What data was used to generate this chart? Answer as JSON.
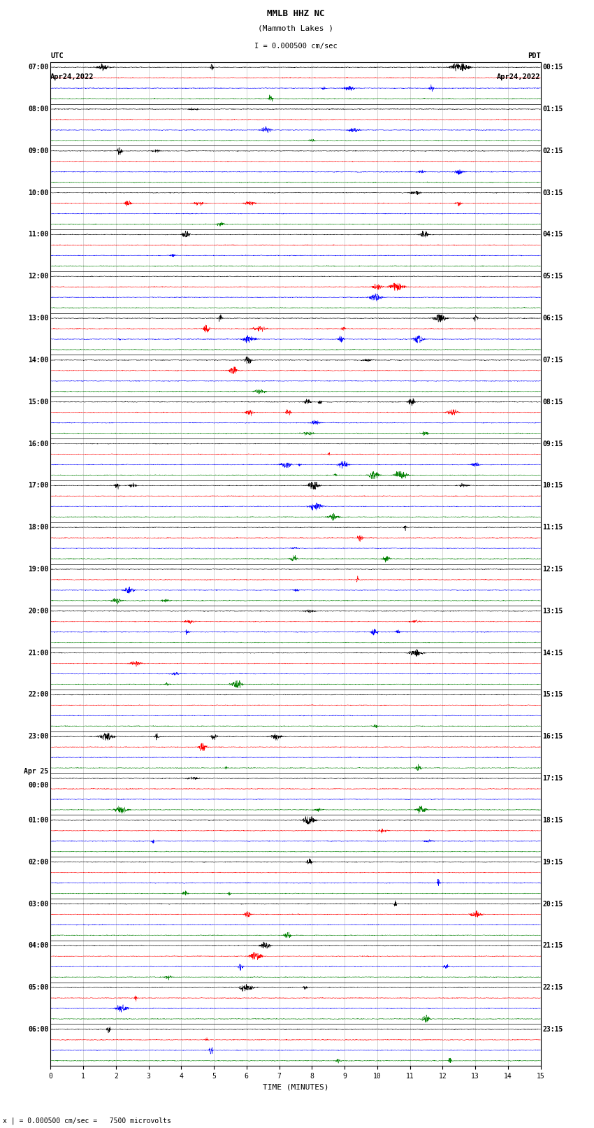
{
  "title_line1": "MMLB HHZ NC",
  "title_line2": "(Mammoth Lakes )",
  "title_line3": "I = 0.000500 cm/sec",
  "left_header_line1": "UTC",
  "left_header_line2": "Apr24,2022",
  "right_header_line1": "PDT",
  "right_header_line2": "Apr24,2022",
  "bottom_xlabel": "TIME (MINUTES)",
  "bottom_note": "x | = 0.000500 cm/sec =   7500 microvolts",
  "utc_labels": [
    [
      "07:00",
      0
    ],
    [
      "08:00",
      4
    ],
    [
      "09:00",
      8
    ],
    [
      "10:00",
      12
    ],
    [
      "11:00",
      16
    ],
    [
      "12:00",
      20
    ],
    [
      "13:00",
      24
    ],
    [
      "14:00",
      28
    ],
    [
      "15:00",
      32
    ],
    [
      "16:00",
      36
    ],
    [
      "17:00",
      40
    ],
    [
      "18:00",
      44
    ],
    [
      "19:00",
      48
    ],
    [
      "20:00",
      52
    ],
    [
      "21:00",
      56
    ],
    [
      "22:00",
      60
    ],
    [
      "23:00",
      64
    ],
    [
      "Apr25\n00:00",
      68
    ],
    [
      "01:00",
      72
    ],
    [
      "02:00",
      76
    ],
    [
      "03:00",
      80
    ],
    [
      "04:00",
      84
    ],
    [
      "05:00",
      88
    ],
    [
      "06:00",
      92
    ]
  ],
  "pdt_labels": [
    [
      "00:15",
      0
    ],
    [
      "01:15",
      4
    ],
    [
      "02:15",
      8
    ],
    [
      "03:15",
      12
    ],
    [
      "04:15",
      16
    ],
    [
      "05:15",
      20
    ],
    [
      "06:15",
      24
    ],
    [
      "07:15",
      28
    ],
    [
      "08:15",
      32
    ],
    [
      "09:15",
      36
    ],
    [
      "10:15",
      40
    ],
    [
      "11:15",
      44
    ],
    [
      "12:15",
      48
    ],
    [
      "13:15",
      52
    ],
    [
      "14:15",
      56
    ],
    [
      "15:15",
      60
    ],
    [
      "16:15",
      64
    ],
    [
      "17:15",
      68
    ],
    [
      "18:15",
      72
    ],
    [
      "19:15",
      76
    ],
    [
      "20:15",
      80
    ],
    [
      "21:15",
      84
    ],
    [
      "22:15",
      88
    ],
    [
      "23:15",
      92
    ]
  ],
  "trace_colors": [
    "black",
    "red",
    "blue",
    "green"
  ],
  "n_rows": 96,
  "n_minutes": 15,
  "fig_width": 8.5,
  "fig_height": 16.13,
  "background_color": "white",
  "grid_color": "#999999",
  "tick_label_fontsize": 7,
  "title_fontsize": 9,
  "header_fontsize": 7.5,
  "label_fontsize": 7
}
